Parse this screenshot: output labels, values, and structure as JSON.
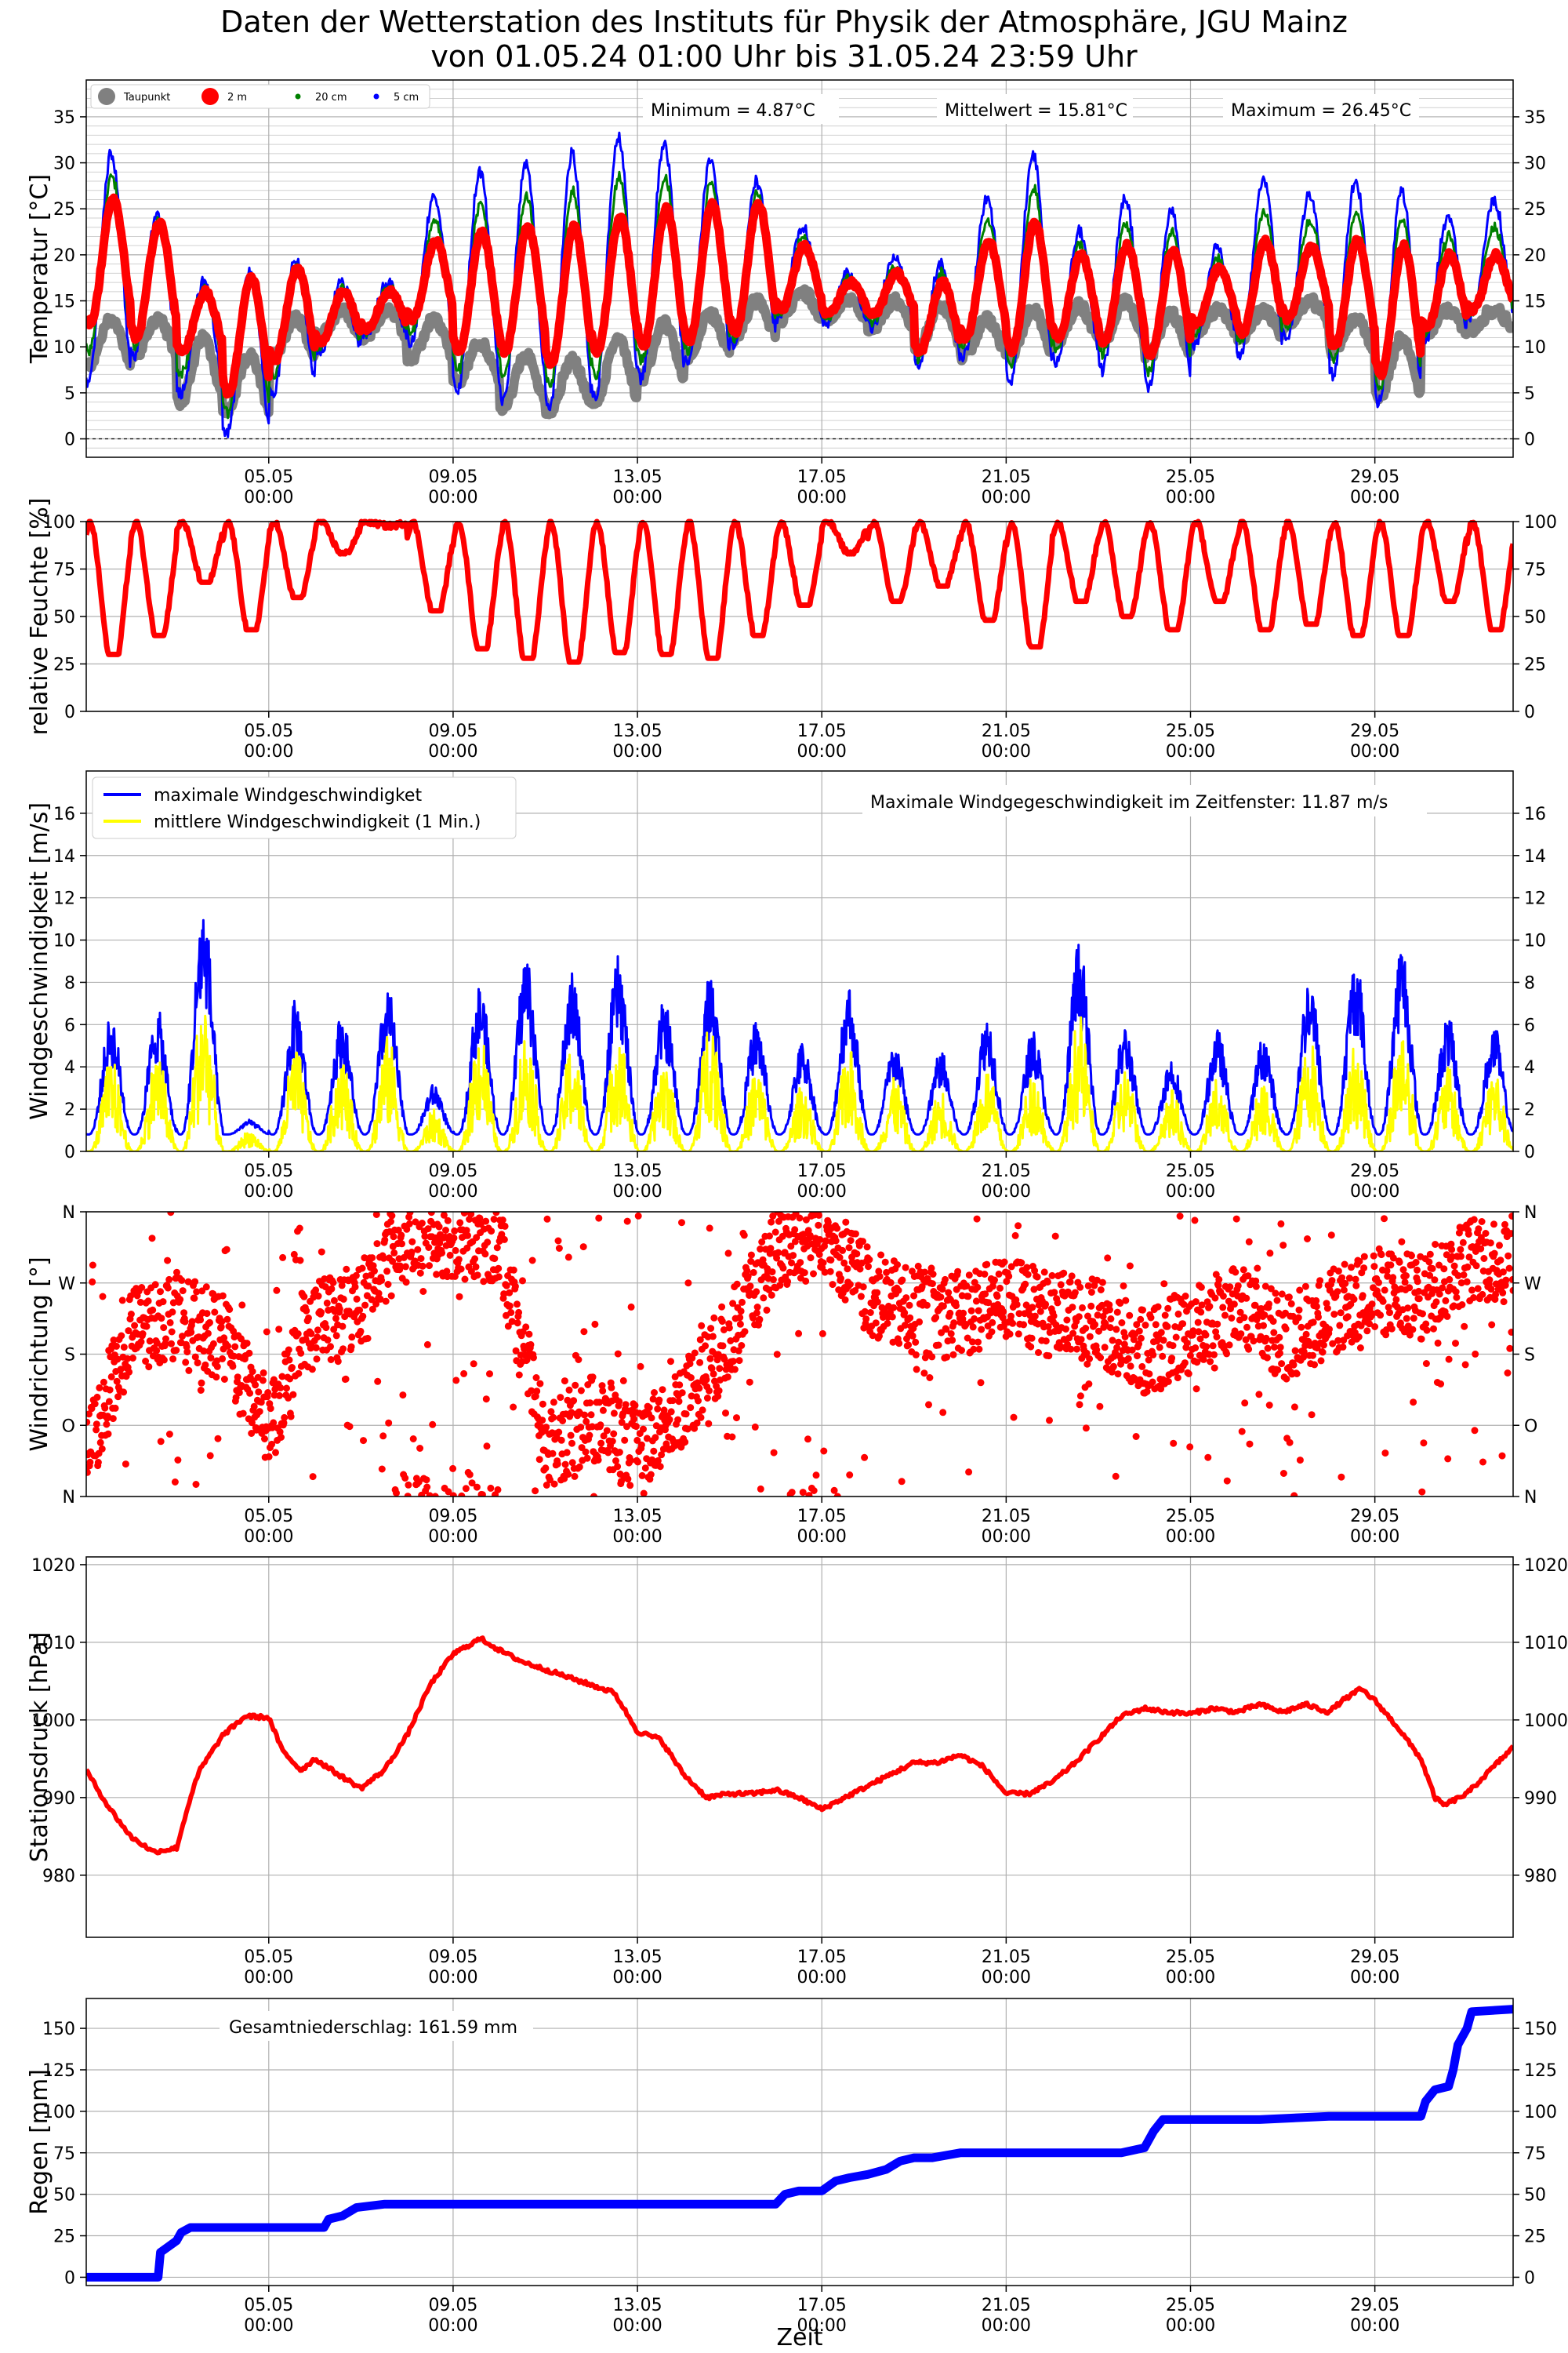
{
  "title": {
    "line1": "Daten der Wetterstation des Instituts für Physik der Atmosphäre, JGU Mainz",
    "line2": "von 01.05.24 01:00 Uhr bis 31.05.24 23:59 Uhr"
  },
  "colors": {
    "red": "#ff0000",
    "blue": "#0000ff",
    "green": "#008000",
    "gray": "#808080",
    "yellow": "#ffff00",
    "grid": "#b0b0b0"
  },
  "chart_data": [
    {
      "id": "temp",
      "type": "scatter",
      "ylabel": "Temperatur [°C]",
      "ylim": [
        -2,
        39
      ],
      "yticks": [
        0,
        5,
        10,
        15,
        20,
        25,
        30,
        35
      ],
      "xlim": [
        1.04,
        32.0
      ],
      "xticks": [
        5,
        9,
        13,
        17,
        21,
        25,
        29
      ],
      "xticklabels": [
        [
          "05.05",
          "00:00"
        ],
        [
          "09.05",
          "00:00"
        ],
        [
          "13.05",
          "00:00"
        ],
        [
          "17.05",
          "00:00"
        ],
        [
          "21.05",
          "00:00"
        ],
        [
          "25.05",
          "00:00"
        ],
        [
          "29.05",
          "00:00"
        ]
      ],
      "grid": true,
      "minor_ygrid": true,
      "hline_dashed_at": 0,
      "legend": {
        "placement": "top-left",
        "entries": [
          {
            "label": "Taupunkt",
            "color": "#808080"
          },
          {
            "label": "2 m",
            "color": "#ff0000"
          },
          {
            "label": "20 cm",
            "color": "#008000"
          },
          {
            "label": "5 cm",
            "color": "#0000ff"
          }
        ]
      },
      "annotations": [
        "Minimum = 4.87°C",
        "Mittelwert = 15.81°C",
        "Maximum = 26.45°C"
      ],
      "daily_extremes": {
        "day": [
          1,
          2,
          3,
          4,
          5,
          6,
          7,
          8,
          9,
          10,
          11,
          12,
          13,
          14,
          15,
          16,
          17,
          18,
          19,
          20,
          21,
          22,
          23,
          24,
          25,
          26,
          27,
          28,
          29,
          30,
          31
        ],
        "t2m_min": [
          12.5,
          11.0,
          9.5,
          5.0,
          8.5,
          10.5,
          12.0,
          13.0,
          9.5,
          9.5,
          8.0,
          9.5,
          10.0,
          10.5,
          11.5,
          14.0,
          13.5,
          13.5,
          9.5,
          11.0,
          9.5,
          11.0,
          10.5,
          9.0,
          12.5,
          11.5,
          13.0,
          10.0,
          7.0,
          12.0,
          14.0
        ],
        "t2m_max": [
          26.0,
          23.5,
          16.0,
          17.5,
          18.5,
          16.0,
          16.0,
          21.5,
          22.5,
          23.0,
          23.0,
          24.0,
          25.0,
          25.5,
          25.5,
          21.0,
          17.0,
          18.0,
          17.0,
          21.5,
          23.5,
          20.0,
          21.0,
          20.5,
          18.5,
          21.5,
          21.0,
          21.5,
          21.0,
          20.0,
          20.0
        ],
        "t5cm_min": [
          6.0,
          9.0,
          5.0,
          0.5,
          5.0,
          9.0,
          11.0,
          10.5,
          5.0,
          4.0,
          3.0,
          4.5,
          6.5,
          8.0,
          10.0,
          13.0,
          12.5,
          12.0,
          8.0,
          9.0,
          6.0,
          8.5,
          7.5,
          5.5,
          10.0,
          9.0,
          11.0,
          7.0,
          4.0,
          10.5,
          13.0
        ],
        "t5cm_max": [
          31.0,
          24.5,
          17.0,
          18.0,
          19.5,
          17.0,
          17.0,
          26.0,
          29.0,
          30.0,
          31.0,
          33.0,
          32.0,
          30.0,
          28.0,
          23.0,
          18.0,
          20.0,
          19.0,
          26.0,
          31.0,
          22.5,
          26.0,
          25.0,
          21.0,
          28.0,
          26.5,
          28.0,
          27.0,
          24.0,
          26.0
        ],
        "dew_min": [
          8.0,
          9.0,
          4.0,
          3.0,
          9.0,
          11.0,
          11.0,
          8.5,
          6.0,
          3.5,
          3.0,
          4.0,
          6.5,
          9.0,
          11.0,
          13.0,
          13.0,
          12.0,
          10.0,
          9.0,
          9.0,
          10.5,
          10.5,
          9.0,
          11.5,
          11.0,
          12.5,
          9.5,
          4.5,
          11.5,
          12.0
        ],
        "dew_max": [
          13.0,
          13.0,
          11.0,
          9.0,
          13.0,
          14.0,
          14.0,
          13.0,
          10.5,
          9.0,
          8.5,
          11.0,
          12.5,
          13.5,
          15.0,
          16.0,
          15.0,
          15.0,
          14.5,
          13.0,
          14.0,
          14.5,
          15.0,
          13.5,
          14.0,
          14.0,
          15.0,
          13.0,
          11.0,
          14.0,
          14.0
        ]
      }
    },
    {
      "id": "rh",
      "type": "scatter",
      "ylabel": "relative Feuchte [%]",
      "ylim": [
        0,
        100
      ],
      "yticks": [
        0,
        25,
        50,
        75,
        100
      ],
      "xlim": [
        1.04,
        32.0
      ],
      "grid": true,
      "daily_minimum": {
        "day": [
          1,
          2,
          3,
          4,
          5,
          6,
          7,
          8,
          9,
          10,
          11,
          12,
          13,
          14,
          15,
          16,
          17,
          18,
          19,
          20,
          21,
          22,
          23,
          24,
          25,
          26,
          27,
          28,
          29,
          30,
          31
        ],
        "rh_min": [
          32,
          42,
          70,
          45,
          62,
          85,
          98,
          55,
          35,
          30,
          28,
          33,
          32,
          30,
          42,
          58,
          85,
          60,
          68,
          50,
          36,
          60,
          52,
          45,
          60,
          45,
          48,
          42,
          42,
          60,
          45
        ]
      }
    },
    {
      "id": "wind",
      "type": "line",
      "ylabel": "Windgeschwindigkeit [m/s]",
      "ylim": [
        0,
        18
      ],
      "yticks": [
        0,
        2,
        4,
        6,
        8,
        10,
        12,
        14,
        16
      ],
      "xlim": [
        1.04,
        32.0
      ],
      "grid": true,
      "legend": {
        "placement": "top-left",
        "entries": [
          {
            "label": "maximale Windgeschwindigket",
            "color": "#0000ff"
          },
          {
            "label": "mittlere Windgeschwindigkeit (1 Min.)",
            "color": "#ffff00"
          }
        ]
      },
      "annotations": [
        "Maximale Windgegeschwindigkeit im Zeitfenster: 11.87 m/s"
      ],
      "daily_peak": {
        "day": [
          1,
          2,
          3,
          4,
          5,
          6,
          7,
          8,
          9,
          10,
          11,
          12,
          13,
          14,
          15,
          16,
          17,
          18,
          19,
          20,
          21,
          22,
          23,
          24,
          25,
          26,
          27,
          28,
          29,
          30,
          31
        ],
        "gust_max": [
          6.5,
          6.8,
          11.87,
          1.5,
          7.2,
          6.5,
          7.8,
          3.2,
          8.0,
          9.5,
          8.5,
          9.3,
          7.2,
          8.5,
          6.3,
          5.2,
          8.0,
          5.2,
          4.8,
          6.5,
          5.8,
          10.0,
          6.0,
          4.5,
          5.8,
          5.5,
          8.5,
          9.3,
          10.0,
          6.5,
          6.0
        ],
        "mean_max": [
          4.5,
          4.8,
          7.6,
          1.0,
          5.0,
          4.5,
          5.5,
          2.0,
          6.0,
          5.8,
          5.2,
          6.0,
          4.5,
          6.8,
          4.0,
          3.2,
          5.0,
          3.5,
          3.0,
          4.0,
          3.8,
          6.5,
          4.0,
          3.0,
          3.5,
          3.5,
          5.5,
          5.2,
          6.0,
          4.0,
          4.0
        ]
      }
    },
    {
      "id": "dir",
      "type": "scatter",
      "ylabel": "Windrichtung [°]",
      "ylim": [
        0,
        360
      ],
      "yticks": [
        0,
        90,
        180,
        270,
        360
      ],
      "yticklabels": [
        "N",
        "O",
        "S",
        "W",
        "N"
      ],
      "xlim": [
        1.04,
        32.0
      ],
      "grid": true,
      "daily_mean_direction": {
        "day": [
          1,
          2,
          3,
          4,
          5,
          6,
          7,
          8,
          9,
          10,
          11,
          12,
          13,
          14,
          15,
          16,
          17,
          18,
          19,
          20,
          21,
          22,
          23,
          24,
          25,
          26,
          27,
          28,
          29,
          30,
          31
        ],
        "deg": [
          40,
          210,
          230,
          200,
          90,
          220,
          240,
          340,
          330,
          320,
          60,
          100,
          60,
          120,
          200,
          310,
          340,
          260,
          230,
          230,
          250,
          230,
          220,
          180,
          210,
          240,
          200,
          230,
          260,
          250,
          300
        ]
      }
    },
    {
      "id": "press",
      "type": "line",
      "ylabel": "Stationsdruck [hPa]",
      "ylim": [
        972,
        1021
      ],
      "yticks": [
        980,
        990,
        1000,
        1010,
        1020
      ],
      "xlim": [
        1.04,
        32.0
      ],
      "grid": true,
      "x": [
        1.04,
        1.5,
        2.0,
        2.5,
        3.0,
        3.3,
        3.5,
        4.0,
        4.5,
        5.0,
        5.3,
        5.7,
        6.0,
        6.5,
        7.0,
        7.5,
        8.0,
        8.5,
        9.0,
        9.3,
        9.6,
        10.0,
        10.5,
        11.0,
        11.5,
        12.0,
        12.5,
        13.0,
        13.5,
        14.0,
        14.5,
        15.0,
        15.5,
        16.0,
        16.5,
        17.0,
        17.5,
        18.0,
        18.5,
        19.0,
        19.5,
        20.0,
        20.5,
        21.0,
        21.5,
        22.0,
        22.5,
        23.0,
        23.5,
        24.0,
        24.5,
        25.0,
        25.5,
        26.0,
        26.5,
        27.0,
        27.5,
        28.0,
        28.3,
        28.7,
        29.0,
        29.5,
        30.0,
        30.3,
        30.5,
        31.0,
        31.5,
        32.0
      ],
      "y": [
        993.5,
        989.0,
        985.0,
        983.0,
        983.5,
        990.0,
        993.5,
        998.0,
        1000.5,
        1000.3,
        996.0,
        993.5,
        995.0,
        993.0,
        991.2,
        993.5,
        998.0,
        1004.5,
        1008.5,
        1009.5,
        1010.5,
        1009.0,
        1007.5,
        1006.5,
        1005.5,
        1004.5,
        1003.5,
        998.5,
        997.5,
        993.0,
        990.0,
        990.5,
        990.5,
        991.0,
        990.0,
        988.5,
        990.0,
        991.5,
        993.0,
        994.5,
        994.5,
        995.5,
        994.0,
        990.5,
        990.5,
        992.0,
        994.5,
        997.5,
        1000.5,
        1001.5,
        1001.0,
        1000.8,
        1001.5,
        1001.0,
        1002.0,
        1001.0,
        1002.0,
        1001.0,
        1002.5,
        1004.0,
        1002.5,
        999.0,
        995.0,
        990.0,
        989.0,
        990.5,
        993.5,
        996.5
      ]
    },
    {
      "id": "rain",
      "type": "line",
      "ylabel": "Regen [mm]",
      "xlabel": "Zeit",
      "ylim": [
        -5,
        168
      ],
      "yticks": [
        0,
        25,
        50,
        75,
        100,
        125,
        150
      ],
      "xlim": [
        1.04,
        32.0
      ],
      "grid": true,
      "annotations": [
        "Gesamtniederschlag: 161.59 mm"
      ],
      "x": [
        1.04,
        2.6,
        2.65,
        2.8,
        3.0,
        3.1,
        3.3,
        3.5,
        5.0,
        6.2,
        6.3,
        6.6,
        6.9,
        7.5,
        10.0,
        16.0,
        16.2,
        16.5,
        16.6,
        17.0,
        17.3,
        17.6,
        18.0,
        18.4,
        18.7,
        19.0,
        19.4,
        20.0,
        23.5,
        24.0,
        24.2,
        24.4,
        26.5,
        28.0,
        30.0,
        30.1,
        30.3,
        30.6,
        30.7,
        30.8,
        31.0,
        31.1,
        32.0
      ],
      "y": [
        0,
        0,
        15,
        18,
        22,
        27,
        30,
        30,
        30,
        30,
        35,
        37,
        42,
        44,
        44,
        44,
        50,
        52,
        52,
        52,
        58,
        60,
        62,
        65,
        70,
        72,
        72,
        75,
        75,
        78,
        88,
        95,
        95,
        97,
        97,
        106,
        113,
        115,
        125,
        140,
        150,
        160,
        161.59
      ]
    }
  ]
}
